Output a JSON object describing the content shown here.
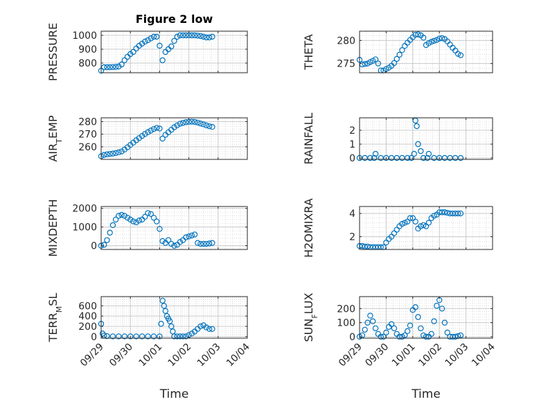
{
  "figure": {
    "title": "Figure 2 low",
    "xlabel": "Time"
  },
  "chart_data": [
    {
      "type": "scatter",
      "id": "pressure",
      "title": "Figure 2 low",
      "ylabel": "PRESSURE",
      "xlabel": "",
      "ylim": [
        730,
        1030
      ],
      "yticks": [
        800,
        900,
        1000
      ],
      "yticklabels": [
        "800",
        "900",
        "1000"
      ],
      "xlim": [
        0,
        5
      ],
      "xticks": [
        0,
        1,
        2,
        3,
        4,
        5
      ],
      "xticklabels": [
        "09/29",
        "09/30",
        "10/01",
        "10/02",
        "10/03",
        "10/04"
      ],
      "xticklabels_visible": false,
      "grid": "on (major and minor)",
      "x": [
        0,
        0.1,
        0.2,
        0.3,
        0.4,
        0.5,
        0.6,
        0.7,
        0.8,
        0.9,
        1.0,
        1.1,
        1.2,
        1.3,
        1.4,
        1.5,
        1.6,
        1.7,
        1.8,
        1.9,
        2.0,
        2.1,
        2.2,
        2.3,
        2.4,
        2.5,
        2.6,
        2.7,
        2.8,
        2.9,
        3.0,
        3.1,
        3.2,
        3.3,
        3.4,
        3.5,
        3.6,
        3.7,
        3.8
      ],
      "y": [
        745,
        770,
        770,
        770,
        771,
        772,
        775,
        790,
        820,
        845,
        865,
        880,
        905,
        925,
        940,
        955,
        965,
        978,
        990,
        990,
        925,
        820,
        880,
        900,
        920,
        960,
        990,
        1000,
        1000,
        1000,
        1000,
        1000,
        1000,
        998,
        995,
        990,
        985,
        985,
        990
      ]
    },
    {
      "type": "scatter",
      "id": "theta",
      "title": "",
      "ylabel": "THETA",
      "xlabel": "",
      "ylim": [
        273,
        282
      ],
      "yticks": [
        275,
        280
      ],
      "yticklabels": [
        "275",
        "280"
      ],
      "xlim": [
        0,
        5
      ],
      "xticks": [
        0,
        1,
        2,
        3,
        4,
        5
      ],
      "xticklabels": [
        "09/29",
        "09/30",
        "10/01",
        "10/02",
        "10/03",
        "10/04"
      ],
      "xticklabels_visible": false,
      "grid": "on (major and minor)",
      "x": [
        0,
        0.1,
        0.2,
        0.3,
        0.4,
        0.5,
        0.6,
        0.7,
        0.8,
        0.9,
        1.0,
        1.1,
        1.2,
        1.3,
        1.4,
        1.5,
        1.6,
        1.7,
        1.8,
        1.9,
        2.0,
        2.1,
        2.2,
        2.3,
        2.4,
        2.5,
        2.6,
        2.7,
        2.8,
        2.9,
        3.0,
        3.1,
        3.2,
        3.3,
        3.4,
        3.5,
        3.6,
        3.7,
        3.8
      ],
      "y": [
        275.8,
        274.8,
        274.9,
        275.0,
        275.3,
        275.6,
        275.9,
        275.0,
        273.5,
        273.5,
        273.8,
        274.1,
        274.5,
        275.1,
        276.0,
        276.9,
        277.9,
        278.8,
        279.5,
        280.1,
        280.7,
        281.2,
        281.3,
        281.1,
        280.6,
        279.0,
        279.4,
        279.7,
        279.9,
        280.1,
        280.4,
        280.5,
        280.3,
        279.8,
        279.1,
        278.4,
        277.8,
        277.1,
        276.8
      ]
    },
    {
      "type": "scatter",
      "id": "air_temp",
      "title": "",
      "ylabel": "AIR_TEMP",
      "ylabel_display": {
        "base": "AIR",
        "sub": "T",
        "rest": "EMP"
      },
      "xlabel": "",
      "ylim": [
        250,
        283
      ],
      "yticks": [
        260,
        270,
        280
      ],
      "yticklabels": [
        "260",
        "270",
        "280"
      ],
      "xlim": [
        0,
        5
      ],
      "xticks": [
        0,
        1,
        2,
        3,
        4,
        5
      ],
      "xticklabels": [
        "09/29",
        "09/30",
        "10/01",
        "10/02",
        "10/03",
        "10/04"
      ],
      "xticklabels_visible": false,
      "grid": "on (major and minor)",
      "x": [
        0,
        0.1,
        0.2,
        0.3,
        0.4,
        0.5,
        0.6,
        0.7,
        0.8,
        0.9,
        1.0,
        1.1,
        1.2,
        1.3,
        1.4,
        1.5,
        1.6,
        1.7,
        1.8,
        1.9,
        2.0,
        2.1,
        2.2,
        2.3,
        2.4,
        2.5,
        2.6,
        2.7,
        2.8,
        2.9,
        3.0,
        3.1,
        3.2,
        3.3,
        3.4,
        3.5,
        3.6,
        3.7,
        3.8
      ],
      "y": [
        252.5,
        253.5,
        254.0,
        254.3,
        254.6,
        255.0,
        255.6,
        256.3,
        257.8,
        259.6,
        261.5,
        263.3,
        265.2,
        266.9,
        268.6,
        270.2,
        271.6,
        272.9,
        274.1,
        275.0,
        274.5,
        266.5,
        269.5,
        271.5,
        273.5,
        275.5,
        277.0,
        278.3,
        279.0,
        279.5,
        279.8,
        279.9,
        279.7,
        279.2,
        278.5,
        277.8,
        277.0,
        276.3,
        275.8
      ]
    },
    {
      "type": "scatter",
      "id": "rainfall",
      "title": "",
      "ylabel": "RAINFALL",
      "xlabel": "",
      "ylim": [
        -0.1,
        2.9
      ],
      "yticks": [
        0,
        1,
        2
      ],
      "yticklabels": [
        "0",
        "1",
        "2"
      ],
      "xlim": [
        0,
        5
      ],
      "xticks": [
        0,
        1,
        2,
        3,
        4,
        5
      ],
      "xticklabels": [
        "09/29",
        "09/30",
        "10/01",
        "10/02",
        "10/03",
        "10/04"
      ],
      "xticklabels_visible": false,
      "grid": "on (major and minor)",
      "x": [
        0,
        0.2,
        0.4,
        0.55,
        0.6,
        0.8,
        1.0,
        1.2,
        1.4,
        1.6,
        1.8,
        1.95,
        2.05,
        2.1,
        2.15,
        2.2,
        2.3,
        2.4,
        2.55,
        2.6,
        2.8,
        3.0,
        3.2,
        3.4,
        3.6,
        3.8
      ],
      "y": [
        0,
        0,
        0,
        0,
        0.3,
        0,
        0,
        0,
        0,
        0,
        0,
        0,
        0.3,
        2.7,
        2.3,
        1.0,
        0.5,
        0,
        0,
        0.3,
        0,
        0,
        0,
        0,
        0,
        0
      ]
    },
    {
      "type": "scatter",
      "id": "mixdepth",
      "title": "",
      "ylabel": "MIXDEPTH",
      "xlabel": "",
      "ylim": [
        -200,
        2100
      ],
      "yticks": [
        0,
        1000,
        2000
      ],
      "yticklabels": [
        "0",
        "1000",
        "2000"
      ],
      "xlim": [
        0,
        5
      ],
      "xticks": [
        0,
        1,
        2,
        3,
        4,
        5
      ],
      "xticklabels": [
        "09/29",
        "09/30",
        "10/01",
        "10/02",
        "10/03",
        "10/04"
      ],
      "xticklabels_visible": false,
      "grid": "on (major and minor)",
      "x": [
        0,
        0.1,
        0.2,
        0.3,
        0.4,
        0.5,
        0.6,
        0.7,
        0.8,
        0.9,
        1.0,
        1.1,
        1.2,
        1.3,
        1.4,
        1.5,
        1.6,
        1.7,
        1.8,
        1.9,
        2.0,
        2.1,
        2.2,
        2.3,
        2.4,
        2.5,
        2.6,
        2.7,
        2.8,
        2.9,
        3.0,
        3.1,
        3.2,
        3.3,
        3.4,
        3.5,
        3.6,
        3.7,
        3.8
      ],
      "y": [
        0,
        50,
        300,
        700,
        1100,
        1400,
        1600,
        1650,
        1600,
        1500,
        1400,
        1300,
        1250,
        1350,
        1400,
        1550,
        1750,
        1700,
        1500,
        1300,
        900,
        250,
        150,
        300,
        100,
        0,
        50,
        200,
        300,
        450,
        500,
        550,
        600,
        150,
        100,
        100,
        100,
        120,
        150
      ]
    },
    {
      "type": "scatter",
      "id": "h2omixra",
      "title": "",
      "ylabel": "H2OMIXRA",
      "xlabel": "",
      "ylim": [
        0.9,
        4.6
      ],
      "yticks": [
        2,
        4
      ],
      "yticklabels": [
        "2",
        "4"
      ],
      "xlim": [
        0,
        5
      ],
      "xticks": [
        0,
        1,
        2,
        3,
        4,
        5
      ],
      "xticklabels": [
        "09/29",
        "09/30",
        "10/01",
        "10/02",
        "10/03",
        "10/04"
      ],
      "xticklabels_visible": false,
      "grid": "on (major and minor)",
      "x": [
        0,
        0.1,
        0.2,
        0.3,
        0.4,
        0.5,
        0.6,
        0.7,
        0.8,
        0.9,
        1.0,
        1.1,
        1.2,
        1.3,
        1.4,
        1.5,
        1.6,
        1.7,
        1.8,
        1.9,
        2.0,
        2.1,
        2.2,
        2.3,
        2.4,
        2.5,
        2.6,
        2.7,
        2.8,
        2.9,
        3.0,
        3.1,
        3.2,
        3.3,
        3.4,
        3.5,
        3.6,
        3.7,
        3.8
      ],
      "y": [
        1.2,
        1.2,
        1.15,
        1.15,
        1.1,
        1.1,
        1.1,
        1.1,
        1.1,
        1.1,
        1.5,
        1.8,
        2.0,
        2.3,
        2.6,
        2.9,
        3.1,
        3.2,
        3.3,
        3.6,
        3.6,
        3.3,
        2.7,
        2.9,
        3.0,
        2.9,
        3.2,
        3.6,
        3.8,
        3.9,
        4.1,
        4.1,
        4.1,
        4.05,
        4.0,
        4.0,
        4.0,
        4.0,
        4.0
      ]
    },
    {
      "type": "scatter",
      "id": "terr_msl",
      "title": "",
      "ylabel": "TERR_MSL",
      "ylabel_display": {
        "base": "TERR",
        "sub": "M",
        "rest": "SL"
      },
      "xlabel": "",
      "ylim": [
        -30,
        780
      ],
      "yticks": [
        0,
        200,
        400,
        600
      ],
      "yticklabels": [
        "0",
        "200",
        "400",
        "600"
      ],
      "xlim": [
        0,
        5
      ],
      "xticks": [
        0,
        1,
        2,
        3,
        4,
        5
      ],
      "xticklabels": [
        "09/29",
        "09/30",
        "10/01",
        "10/02",
        "10/03",
        "10/04"
      ],
      "xticklabels_visible": true,
      "grid": "on (major and minor)",
      "x": [
        0,
        0.05,
        0.1,
        0.2,
        0.4,
        0.6,
        0.8,
        1.0,
        1.2,
        1.4,
        1.6,
        1.8,
        2.0,
        2.05,
        2.1,
        2.15,
        2.2,
        2.25,
        2.3,
        2.35,
        2.4,
        2.45,
        2.5,
        2.6,
        2.7,
        2.8,
        2.9,
        3.0,
        3.1,
        3.2,
        3.3,
        3.4,
        3.5,
        3.6,
        3.7,
        3.8
      ],
      "y": [
        250,
        60,
        20,
        10,
        5,
        5,
        5,
        5,
        5,
        5,
        5,
        5,
        5,
        250,
        700,
        600,
        500,
        400,
        350,
        300,
        200,
        100,
        5,
        5,
        5,
        5,
        5,
        30,
        60,
        100,
        150,
        200,
        220,
        180,
        150,
        150
      ]
    },
    {
      "type": "scatter",
      "id": "sun_flux",
      "title": "",
      "ylabel": "SUN_FLUX",
      "ylabel_display": {
        "base": "SUN",
        "sub": "F",
        "rest": "LUX"
      },
      "xlabel": "",
      "ylim": [
        -10,
        285
      ],
      "yticks": [
        0,
        100,
        200
      ],
      "yticklabels": [
        "0",
        "100",
        "200"
      ],
      "xlim": [
        0,
        5
      ],
      "xticks": [
        0,
        1,
        2,
        3,
        4,
        5
      ],
      "xticklabels": [
        "09/29",
        "09/30",
        "10/01",
        "10/02",
        "10/03",
        "10/04"
      ],
      "xticklabels_visible": true,
      "grid": "on (major and minor)",
      "x": [
        0,
        0.1,
        0.2,
        0.3,
        0.4,
        0.5,
        0.6,
        0.7,
        0.8,
        0.9,
        1.0,
        1.1,
        1.2,
        1.3,
        1.4,
        1.5,
        1.6,
        1.7,
        1.8,
        1.9,
        2.0,
        2.1,
        2.2,
        2.3,
        2.4,
        2.5,
        2.6,
        2.7,
        2.8,
        2.9,
        3.0,
        3.1,
        3.2,
        3.3,
        3.4,
        3.5,
        3.6,
        3.7,
        3.8
      ],
      "y": [
        0,
        10,
        50,
        100,
        150,
        110,
        60,
        20,
        0,
        0,
        30,
        70,
        90,
        60,
        20,
        0,
        0,
        10,
        40,
        80,
        190,
        210,
        140,
        60,
        10,
        0,
        0,
        20,
        110,
        220,
        260,
        200,
        100,
        30,
        0,
        0,
        0,
        5,
        10
      ]
    }
  ],
  "style": {
    "marker_color": "#0072bd",
    "grid_color": "#c8c8c8",
    "axis_color": "#262626"
  }
}
